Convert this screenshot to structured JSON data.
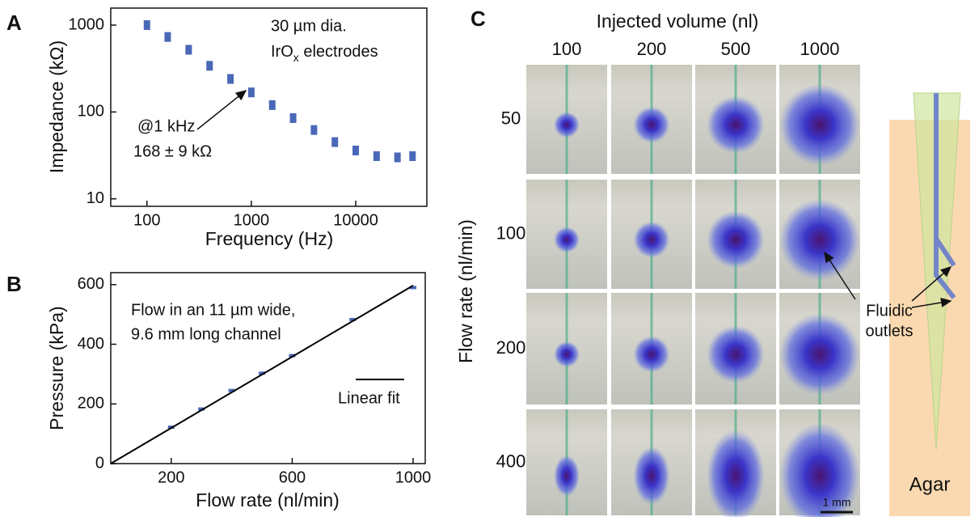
{
  "panel_labels": [
    "A",
    "B",
    "C"
  ],
  "chart_data": [
    {
      "type": "scatter",
      "xlabel": "Frequency (Hz)",
      "ylabel": "Impedance (kΩ)",
      "xlog": true,
      "ylog": true,
      "xlim": [
        45,
        48000
      ],
      "ylim": [
        8.2,
        1570
      ],
      "xticks": [
        100,
        1000,
        10000
      ],
      "yticks": [
        10,
        100,
        1000
      ],
      "x": [
        100,
        158,
        251,
        398,
        631,
        1000,
        1585,
        2512,
        3981,
        6310,
        10000,
        15849,
        25119,
        35000
      ],
      "series": [
        {
          "color": "#4a68b8",
          "values": [
            1000,
            730,
            520,
            340,
            240,
            168,
            120,
            85,
            62,
            45,
            36,
            31,
            30,
            31
          ]
        }
      ],
      "annotations": [
        "30 µm dia.",
        {
          "text": "IrO",
          "subscript": "x",
          "after": " electrodes"
        },
        "@1 kHz",
        "168 ± 9 kΩ"
      ]
    },
    {
      "type": "scatter",
      "xlabel": "Flow rate (nl/min)",
      "ylabel": "Pressure (kPa)",
      "xlim": [
        0,
        1040
      ],
      "ylim": [
        0,
        640
      ],
      "xticks": [
        200,
        600,
        1000
      ],
      "yticks": [
        0,
        200,
        400,
        600
      ],
      "x": [
        200,
        300,
        400,
        500,
        600,
        800,
        1000
      ],
      "series": [
        {
          "color": "#4a68b8",
          "values": [
            122,
            183,
            245,
            303,
            362,
            483,
            590
          ]
        }
      ],
      "fit": {
        "name": "Linear fit",
        "color": "#000000",
        "x": [
          0,
          1000
        ],
        "values": [
          0,
          597
        ]
      },
      "annotations": [
        "Flow in an 11 µm wide,",
        "9.6 mm long channel"
      ]
    }
  ],
  "panel_c": {
    "title": "Injected volume (nl)",
    "columns": [
      100,
      200,
      500,
      1000
    ],
    "row_axis_label": "Flow rate (nl/min)",
    "rows": [
      50,
      100,
      200,
      400
    ],
    "scale_bar": "1 mm",
    "callout": [
      "Fluidic",
      "outlets"
    ],
    "agar_label": "Agar"
  }
}
